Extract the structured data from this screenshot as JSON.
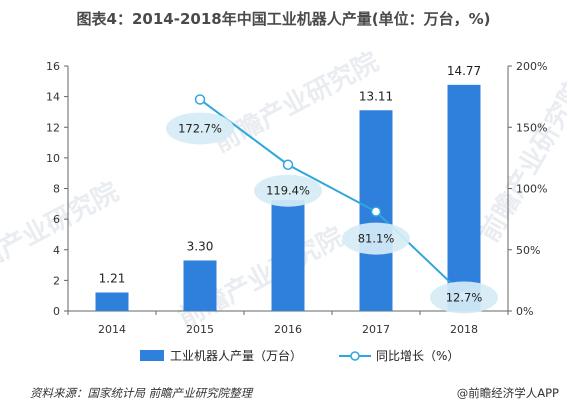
{
  "title": "图表4：2014-2018年中国工业机器人产量(单位：万台，%)",
  "source": "资料来源：国家统计局 前瞻产业研究院整理",
  "brand": "@前瞻经济学人APP",
  "watermark": "前瞻产业研究院",
  "chart_data": {
    "type": "bar",
    "categories": [
      "2014",
      "2015",
      "2016",
      "2017",
      "2018"
    ],
    "series": [
      {
        "name": "工业机器人产量（万台）",
        "type": "bar",
        "axis": "left",
        "color": "#2f80dc",
        "values": [
          1.21,
          3.3,
          7.24,
          13.11,
          14.77
        ],
        "labels": [
          "1.21",
          "3.30",
          "",
          "13.11",
          "14.77"
        ]
      },
      {
        "name": "同比增长（%）",
        "type": "line",
        "axis": "right",
        "color": "#2fa6dd",
        "values": [
          null,
          172.7,
          119.4,
          81.1,
          12.7
        ],
        "labels": [
          "",
          "172.7%",
          "119.4%",
          "81.1%",
          "12.7%"
        ]
      }
    ],
    "y_left": {
      "ylim": [
        0,
        16
      ],
      "ticks": [
        "0",
        "2",
        "4",
        "6",
        "8",
        "10",
        "12",
        "14",
        "16"
      ]
    },
    "y_right": {
      "ylim": [
        0,
        200
      ],
      "ticks": [
        "0%",
        "50%",
        "100%",
        "150%",
        "200%"
      ]
    },
    "legend_position": "bottom",
    "grid": false
  }
}
